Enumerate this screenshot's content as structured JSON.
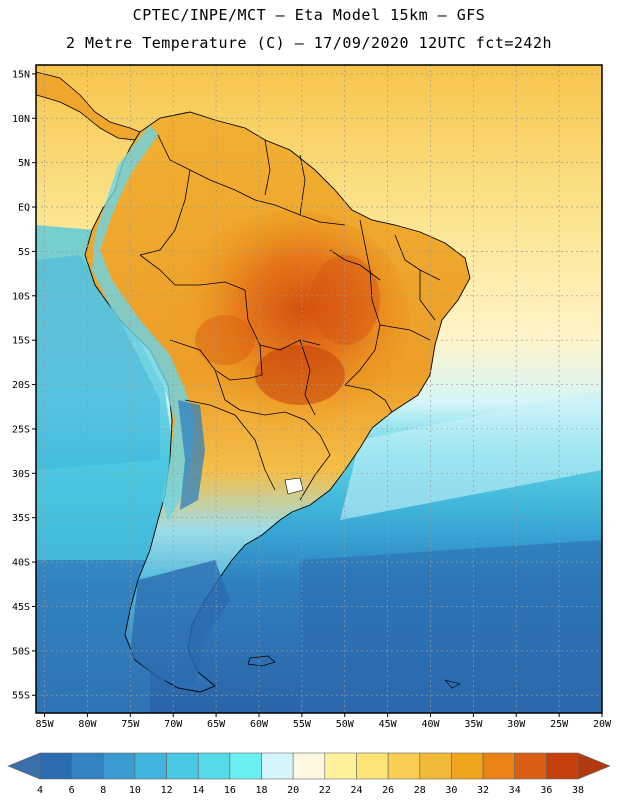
{
  "header": {
    "line1": "CPTEC/INPE/MCT –  Eta Model 15km – GFS",
    "line2": "2 Metre Temperature (C) – 17/09/2020 12UTC fct=242h"
  },
  "map": {
    "lat_labels": [
      "15N",
      "10N",
      "5N",
      "EQ",
      "5S",
      "10S",
      "15S",
      "20S",
      "25S",
      "30S",
      "35S",
      "40S",
      "45S",
      "50S",
      "55S"
    ],
    "lon_labels": [
      "85W",
      "80W",
      "75W",
      "70W",
      "65W",
      "60W",
      "55W",
      "50W",
      "45W",
      "40W",
      "35W",
      "30W",
      "25W",
      "20W"
    ],
    "lat_range": [
      -57,
      16
    ],
    "lon_range": [
      -86,
      -20
    ]
  },
  "colorbar": {
    "levels": [
      "4",
      "6",
      "8",
      "10",
      "12",
      "14",
      "16",
      "18",
      "20",
      "22",
      "24",
      "26",
      "28",
      "30",
      "32",
      "34",
      "36",
      "38"
    ],
    "colors": [
      "#3a6fa8",
      "#2b6cb0",
      "#3383c2",
      "#3a9bd0",
      "#3fb4dc",
      "#48c8e2",
      "#55dbe8",
      "#6af0f2",
      "#d2f6fb",
      "#fff7e0",
      "#fff29a",
      "#fde477",
      "#f8cd52",
      "#f2b838",
      "#efa41d",
      "#ea8216",
      "#db5f12",
      "#c5400b",
      "#b23a10"
    ]
  }
}
